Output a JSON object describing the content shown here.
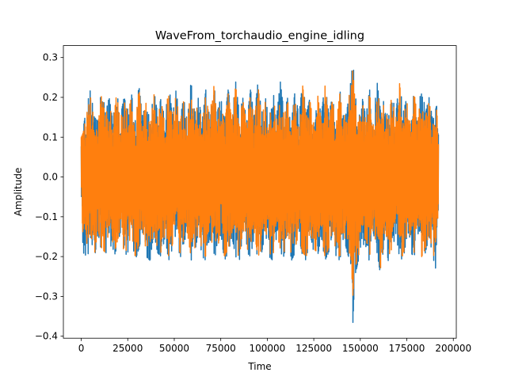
{
  "chart_data": {
    "type": "line",
    "title": "WaveFrom_torchaudio_engine_idling",
    "xlabel": "Time",
    "ylabel": "Amplitude",
    "xlim": [
      -9600,
      201600
    ],
    "ylim": [
      -0.405,
      0.33
    ],
    "xticks": [
      0,
      25000,
      50000,
      75000,
      100000,
      125000,
      150000,
      175000,
      200000
    ],
    "yticks": [
      -0.4,
      -0.3,
      -0.2,
      -0.1,
      0.0,
      0.1,
      0.2,
      0.3
    ],
    "xtick_labels": [
      "0",
      "25000",
      "50000",
      "75000",
      "100000",
      "125000",
      "150000",
      "175000",
      "200000"
    ],
    "ytick_labels": [
      "−0.4",
      "−0.3",
      "−0.2",
      "−0.1",
      "0.0",
      "0.1",
      "0.2",
      "0.3"
    ],
    "grid": false,
    "series": [
      {
        "color": "#1f77b4",
        "x": [
          0,
          1000,
          3000,
          5000,
          7000,
          9000,
          11000,
          13000,
          15000,
          17000,
          19000,
          21000,
          23000,
          25000,
          27000,
          29000,
          31000,
          33000,
          35000,
          37000,
          39000,
          41000,
          43000,
          45000,
          47000,
          49000,
          51000,
          53000,
          55000,
          57000,
          59000,
          61000,
          63000,
          65000,
          67000,
          69000,
          71000,
          73000,
          75000,
          77000,
          79000,
          81000,
          83000,
          85000,
          87000,
          89000,
          91000,
          93000,
          95000,
          97000,
          99000,
          101000,
          103000,
          105000,
          107000,
          109000,
          111000,
          113000,
          115000,
          117000,
          119000,
          121000,
          123000,
          125000,
          127000,
          129000,
          131000,
          133000,
          135000,
          137000,
          139000,
          141000,
          143000,
          145000,
          146000,
          147000,
          149000,
          151000,
          153000,
          155000,
          157000,
          159000,
          161000,
          163000,
          165000,
          167000,
          169000,
          171000,
          173000,
          175000,
          177000,
          179000,
          181000,
          183000,
          185000,
          187000,
          189000,
          191000,
          192000
        ],
        "ymax": [
          0.11,
          0.12,
          0.18,
          0.22,
          0.15,
          0.14,
          0.23,
          0.16,
          0.2,
          0.14,
          0.22,
          0.15,
          0.2,
          0.17,
          0.21,
          0.14,
          0.23,
          0.15,
          0.2,
          0.13,
          0.22,
          0.16,
          0.2,
          0.14,
          0.24,
          0.15,
          0.22,
          0.14,
          0.2,
          0.14,
          0.24,
          0.16,
          0.2,
          0.14,
          0.22,
          0.15,
          0.25,
          0.16,
          0.2,
          0.14,
          0.22,
          0.15,
          0.24,
          0.16,
          0.2,
          0.14,
          0.22,
          0.15,
          0.24,
          0.16,
          0.2,
          0.14,
          0.22,
          0.15,
          0.24,
          0.16,
          0.2,
          0.14,
          0.22,
          0.15,
          0.24,
          0.16,
          0.2,
          0.14,
          0.22,
          0.15,
          0.24,
          0.16,
          0.2,
          0.14,
          0.22,
          0.15,
          0.2,
          0.24,
          0.3,
          0.22,
          0.14,
          0.2,
          0.15,
          0.22,
          0.14,
          0.24,
          0.16,
          0.2,
          0.14,
          0.22,
          0.15,
          0.25,
          0.16,
          0.2,
          0.14,
          0.22,
          0.15,
          0.24,
          0.16,
          0.2,
          0.14,
          0.18,
          0.12
        ],
        "ymin": [
          -0.03,
          -0.19,
          -0.2,
          -0.18,
          -0.21,
          -0.14,
          -0.19,
          -0.2,
          -0.14,
          -0.21,
          -0.18,
          -0.14,
          -0.2,
          -0.19,
          -0.15,
          -0.21,
          -0.18,
          -0.14,
          -0.2,
          -0.21,
          -0.14,
          -0.19,
          -0.2,
          -0.15,
          -0.21,
          -0.18,
          -0.14,
          -0.2,
          -0.2,
          -0.15,
          -0.21,
          -0.19,
          -0.14,
          -0.2,
          -0.21,
          -0.15,
          -0.19,
          -0.2,
          -0.14,
          -0.21,
          -0.19,
          -0.15,
          -0.2,
          -0.21,
          -0.14,
          -0.19,
          -0.2,
          -0.15,
          -0.21,
          -0.19,
          -0.14,
          -0.2,
          -0.21,
          -0.15,
          -0.19,
          -0.2,
          -0.14,
          -0.21,
          -0.19,
          -0.15,
          -0.2,
          -0.21,
          -0.14,
          -0.19,
          -0.2,
          -0.15,
          -0.21,
          -0.19,
          -0.14,
          -0.2,
          -0.21,
          -0.15,
          -0.19,
          -0.22,
          -0.37,
          -0.25,
          -0.21,
          -0.15,
          -0.2,
          -0.21,
          -0.14,
          -0.19,
          -0.25,
          -0.15,
          -0.21,
          -0.19,
          -0.14,
          -0.2,
          -0.21,
          -0.15,
          -0.19,
          -0.2,
          -0.14,
          -0.21,
          -0.19,
          -0.15,
          -0.2,
          -0.24,
          -0.08
        ]
      },
      {
        "color": "#ff7f0e",
        "x": [
          0,
          1000,
          3000,
          5000,
          7000,
          9000,
          11000,
          13000,
          15000,
          17000,
          19000,
          21000,
          23000,
          25000,
          27000,
          29000,
          31000,
          33000,
          35000,
          37000,
          39000,
          41000,
          43000,
          45000,
          47000,
          49000,
          51000,
          53000,
          55000,
          57000,
          59000,
          61000,
          63000,
          65000,
          67000,
          69000,
          71000,
          73000,
          75000,
          77000,
          79000,
          81000,
          83000,
          85000,
          87000,
          89000,
          91000,
          93000,
          95000,
          97000,
          99000,
          101000,
          103000,
          105000,
          107000,
          109000,
          111000,
          113000,
          115000,
          117000,
          119000,
          121000,
          123000,
          125000,
          127000,
          129000,
          131000,
          133000,
          135000,
          137000,
          139000,
          141000,
          143000,
          145000,
          146000,
          147000,
          149000,
          151000,
          153000,
          155000,
          157000,
          159000,
          161000,
          163000,
          165000,
          167000,
          169000,
          171000,
          173000,
          175000,
          177000,
          179000,
          181000,
          183000,
          185000,
          187000,
          189000,
          191000,
          192000
        ],
        "ymax": [
          0.1,
          0.11,
          0.16,
          0.2,
          0.14,
          0.13,
          0.21,
          0.15,
          0.19,
          0.13,
          0.21,
          0.14,
          0.19,
          0.16,
          0.2,
          0.13,
          0.22,
          0.14,
          0.19,
          0.12,
          0.21,
          0.15,
          0.19,
          0.13,
          0.23,
          0.14,
          0.21,
          0.13,
          0.19,
          0.13,
          0.23,
          0.15,
          0.19,
          0.13,
          0.21,
          0.14,
          0.24,
          0.15,
          0.19,
          0.13,
          0.21,
          0.14,
          0.23,
          0.15,
          0.19,
          0.13,
          0.21,
          0.14,
          0.23,
          0.15,
          0.19,
          0.13,
          0.21,
          0.14,
          0.23,
          0.15,
          0.19,
          0.13,
          0.21,
          0.14,
          0.23,
          0.15,
          0.19,
          0.13,
          0.21,
          0.14,
          0.23,
          0.15,
          0.19,
          0.13,
          0.21,
          0.14,
          0.19,
          0.22,
          0.27,
          0.2,
          0.13,
          0.19,
          0.14,
          0.21,
          0.13,
          0.23,
          0.15,
          0.19,
          0.13,
          0.21,
          0.14,
          0.24,
          0.15,
          0.19,
          0.13,
          0.21,
          0.14,
          0.23,
          0.15,
          0.19,
          0.13,
          0.17,
          0.11
        ],
        "ymin": [
          -0.02,
          -0.18,
          -0.19,
          -0.17,
          -0.2,
          -0.13,
          -0.18,
          -0.19,
          -0.13,
          -0.2,
          -0.17,
          -0.13,
          -0.19,
          -0.18,
          -0.14,
          -0.2,
          -0.17,
          -0.13,
          -0.19,
          -0.2,
          -0.13,
          -0.18,
          -0.19,
          -0.14,
          -0.2,
          -0.17,
          -0.13,
          -0.19,
          -0.19,
          -0.14,
          -0.2,
          -0.18,
          -0.13,
          -0.19,
          -0.2,
          -0.14,
          -0.18,
          -0.19,
          -0.13,
          -0.2,
          -0.18,
          -0.14,
          -0.19,
          -0.2,
          -0.13,
          -0.18,
          -0.19,
          -0.14,
          -0.2,
          -0.18,
          -0.13,
          -0.19,
          -0.2,
          -0.14,
          -0.18,
          -0.19,
          -0.13,
          -0.2,
          -0.18,
          -0.14,
          -0.19,
          -0.2,
          -0.13,
          -0.18,
          -0.19,
          -0.14,
          -0.2,
          -0.18,
          -0.13,
          -0.19,
          -0.2,
          -0.14,
          -0.18,
          -0.2,
          -0.3,
          -0.23,
          -0.2,
          -0.14,
          -0.19,
          -0.2,
          -0.13,
          -0.18,
          -0.23,
          -0.14,
          -0.2,
          -0.18,
          -0.13,
          -0.19,
          -0.2,
          -0.14,
          -0.18,
          -0.19,
          -0.13,
          -0.2,
          -0.18,
          -0.14,
          -0.19,
          -0.22,
          -0.07
        ]
      }
    ]
  }
}
